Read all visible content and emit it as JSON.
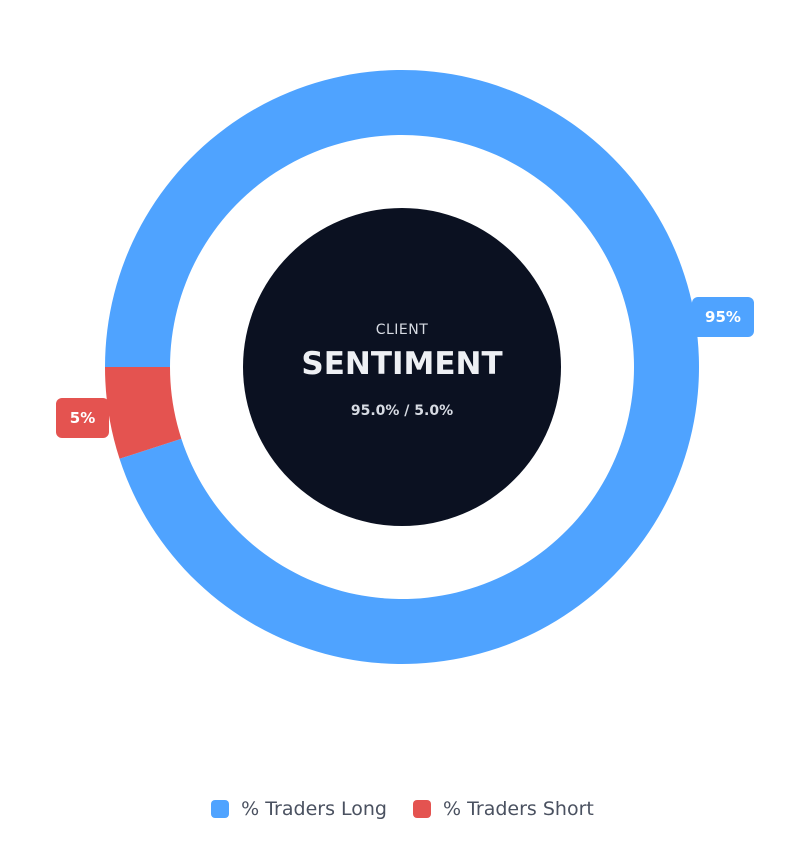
{
  "chart_data": {
    "type": "pie",
    "series": [
      {
        "name": "% Traders Long",
        "value": 95,
        "label": "95%",
        "color": "#4fa3ff"
      },
      {
        "name": "% Traders Short",
        "value": 5,
        "label": "5%",
        "color": "#e45350"
      }
    ],
    "center": {
      "top": "CLIENT",
      "title": "SENTIMENT",
      "subtitle": "95.0% / 5.0%",
      "color": "#0b1121"
    },
    "legend_position": "bottom"
  }
}
